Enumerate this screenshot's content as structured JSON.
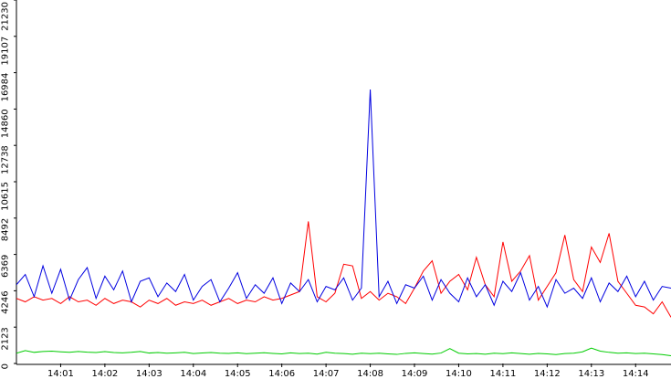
{
  "chart_data": {
    "type": "line",
    "categories": [
      null,
      null,
      null,
      null,
      null,
      "14:01",
      null,
      null,
      null,
      null,
      "14:02",
      null,
      null,
      null,
      null,
      "14:03",
      null,
      null,
      null,
      null,
      "14:04",
      null,
      null,
      null,
      null,
      "14:05",
      null,
      null,
      null,
      null,
      "14:06",
      null,
      null,
      null,
      null,
      "14:07",
      null,
      null,
      null,
      null,
      "14:08",
      null,
      null,
      null,
      null,
      "14:09",
      null,
      null,
      null,
      null,
      "14:10",
      null,
      null,
      null,
      null,
      "14:11",
      null,
      null,
      null,
      null,
      "14:12",
      null,
      null,
      null,
      null,
      "14:13",
      null,
      null,
      null,
      null,
      "14:14",
      null,
      null,
      null,
      null
    ],
    "series": [
      {
        "color": "#ff0000",
        "values": [
          3800,
          3600,
          3900,
          3700,
          3800,
          3500,
          3900,
          3600,
          3700,
          3400,
          3800,
          3500,
          3700,
          3600,
          3300,
          3700,
          3500,
          3800,
          3400,
          3600,
          3500,
          3700,
          3400,
          3600,
          3800,
          3500,
          3700,
          3600,
          3900,
          3700,
          3800,
          4000,
          4200,
          8300,
          3900,
          3600,
          4100,
          5800,
          5700,
          3800,
          4200,
          3700,
          4100,
          3900,
          3500,
          4400,
          5400,
          6000,
          4100,
          4800,
          5200,
          4300,
          6200,
          4600,
          3900,
          7100,
          4800,
          5400,
          6300,
          3700,
          4500,
          5300,
          7500,
          4900,
          4200,
          6800,
          5900,
          7600,
          4800,
          4100,
          3400,
          3300,
          2900,
          3600,
          2700
        ]
      },
      {
        "color": "#0000e0",
        "values": [
          4600,
          5200,
          3900,
          5700,
          4100,
          5500,
          3700,
          4900,
          5600,
          3800,
          5100,
          4300,
          5400,
          3600,
          4800,
          5000,
          3900,
          4700,
          4200,
          5200,
          3700,
          4500,
          4900,
          3600,
          4400,
          5300,
          3800,
          4600,
          4100,
          5000,
          3500,
          4700,
          4200,
          4900,
          3600,
          4500,
          4300,
          5000,
          3700,
          4400,
          16000,
          3900,
          4800,
          3500,
          4600,
          4400,
          5100,
          3700,
          4900,
          4100,
          3600,
          5000,
          3900,
          4600,
          3400,
          4800,
          4200,
          5300,
          3700,
          4500,
          3300,
          4900,
          4100,
          4400,
          3800,
          5000,
          3600,
          4700,
          4200,
          5100,
          3900,
          4800,
          3700,
          4500,
          4400
        ]
      },
      {
        "color": "#00cc00",
        "values": [
          600,
          750,
          650,
          700,
          720,
          680,
          650,
          700,
          660,
          640,
          690,
          640,
          620,
          650,
          700,
          610,
          640,
          600,
          620,
          650,
          580,
          610,
          640,
          600,
          590,
          620,
          570,
          600,
          630,
          590,
          560,
          620,
          580,
          600,
          550,
          650,
          600,
          580,
          540,
          600,
          570,
          600,
          560,
          530,
          590,
          620,
          580,
          550,
          610,
          870,
          600,
          560,
          580,
          540,
          600,
          570,
          620,
          580,
          540,
          590,
          560,
          520,
          580,
          600,
          680,
          900,
          720,
          650,
          600,
          620,
          580,
          600,
          560,
          520,
          450
        ]
      }
    ],
    "ylim": [
      0,
      21230
    ],
    "yticks": [
      0,
      2123,
      4246,
      6369,
      8492,
      10615,
      12738,
      14860,
      16984,
      19107,
      21230
    ]
  }
}
